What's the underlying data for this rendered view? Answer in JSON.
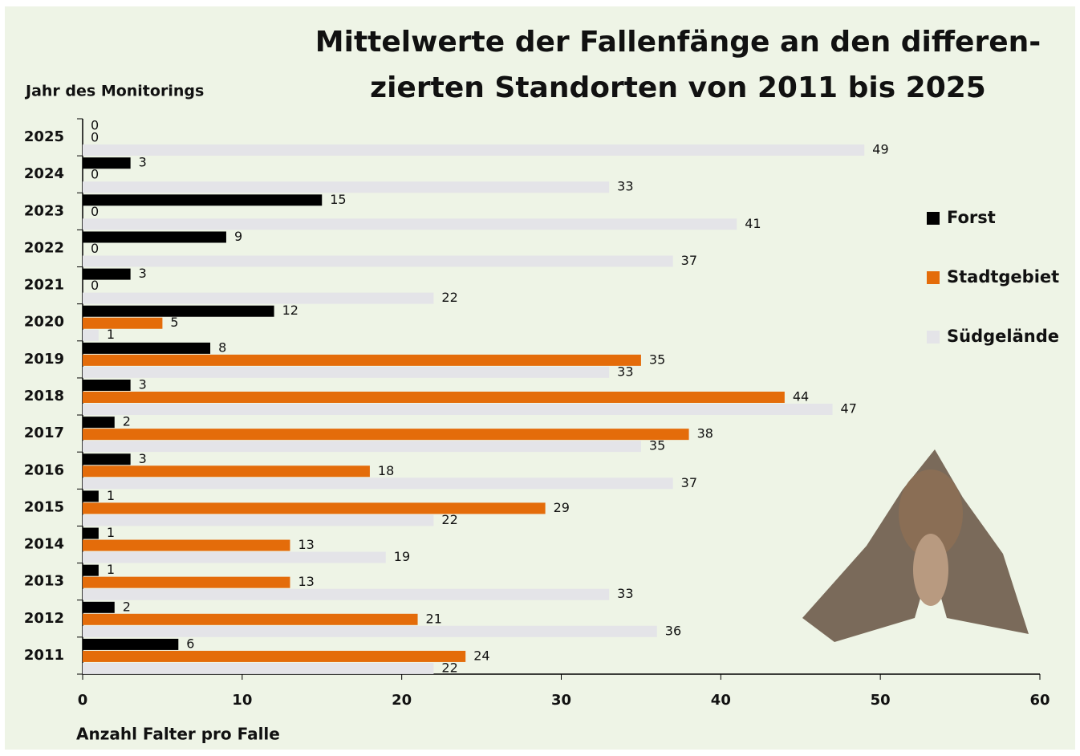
{
  "chart_data": {
    "type": "bar",
    "orientation": "horizontal",
    "title": [
      "Mittelwerte der Fallenfänge an den differen-",
      "zierten Standorten von 2011 bis 2025"
    ],
    "y_axis_label": "Jahr des Monitorings",
    "x_axis_label": "Anzahl Falter pro Falle",
    "categories": [
      "2011",
      "2012",
      "2013",
      "2014",
      "2015",
      "2016",
      "2017",
      "2018",
      "2019",
      "2020",
      "2021",
      "2022",
      "2023",
      "2024",
      "2025"
    ],
    "series": [
      {
        "name": "Forst",
        "color": "#000000",
        "values": [
          6,
          2,
          1,
          1,
          1,
          3,
          2,
          3,
          8,
          12,
          3,
          9,
          15,
          3,
          0
        ]
      },
      {
        "name": "Stadtgebiet",
        "color": "#e46c0a",
        "values": [
          24,
          21,
          13,
          13,
          29,
          18,
          38,
          44,
          35,
          5,
          0,
          0,
          0,
          0,
          0
        ]
      },
      {
        "name": "Südgelände",
        "color": "#e4e4e8",
        "values": [
          22,
          36,
          33,
          19,
          22,
          37,
          35,
          47,
          33,
          1,
          22,
          37,
          41,
          33,
          49
        ]
      }
    ],
    "xlim": [
      0,
      60
    ],
    "xticks": [
      0,
      10,
      20,
      30,
      40,
      50,
      60
    ],
    "grid": false,
    "legend_position": "right"
  }
}
